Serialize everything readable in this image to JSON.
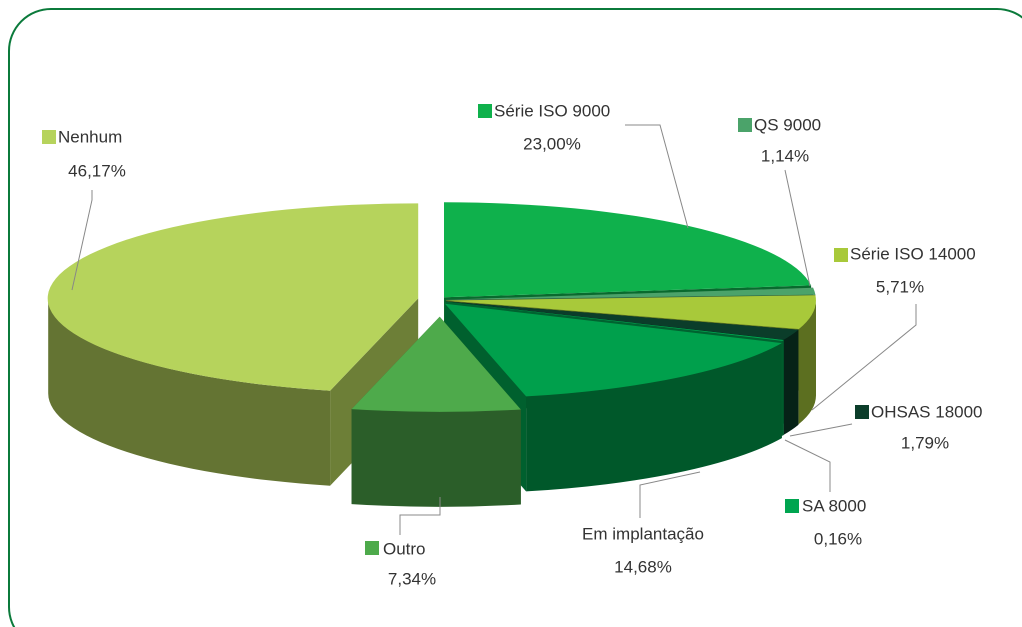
{
  "chart_data": {
    "type": "pie",
    "categories": [
      "Série ISO 9000",
      "QS 9000",
      "Série ISO 14000",
      "OHSAS 18000",
      "SA 8000",
      "Em implantação",
      "Outro",
      "Nenhum"
    ],
    "values": [
      23.0,
      1.14,
      5.71,
      1.79,
      0.16,
      14.68,
      7.34,
      46.17
    ],
    "value_labels": [
      "23,00%",
      "1,14%",
      "5,71%",
      "1,79%",
      "0,16%",
      "14,68%",
      "7,34%",
      "46,17%"
    ],
    "colors": [
      "#0fb14c",
      "#4ba36a",
      "#a8c93a",
      "#0b3d2a",
      "#00a550",
      "#00a04c",
      "#4eaa4b",
      "#b6d35c"
    ]
  }
}
